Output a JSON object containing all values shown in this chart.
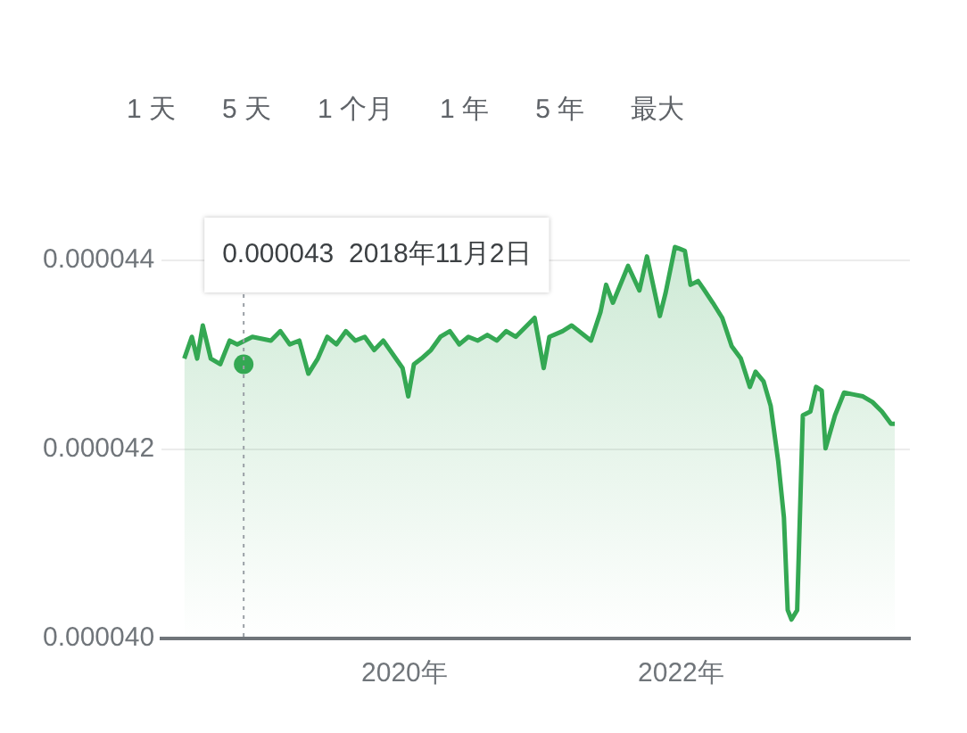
{
  "chart_data": {
    "type": "area",
    "x": [
      "2018-05-29",
      "2018-06-18",
      "2018-07-02",
      "2018-07-17",
      "2018-08-07",
      "2018-09-01",
      "2018-09-26",
      "2018-10-16",
      "2018-11-25",
      "2019-01-13",
      "2019-02-07",
      "2019-03-04",
      "2019-03-29",
      "2019-04-22",
      "2019-05-17",
      "2019-06-11",
      "2019-07-05",
      "2019-07-30",
      "2019-08-24",
      "2019-09-18",
      "2019-10-13",
      "2019-11-06",
      "2019-12-27",
      "2020-01-11",
      "2020-01-26",
      "2020-02-15",
      "2020-03-11",
      "2020-04-05",
      "2020-04-30",
      "2020-05-25",
      "2020-06-18",
      "2020-07-13",
      "2020-08-07",
      "2020-09-01",
      "2020-09-26",
      "2020-10-21",
      "2020-12-10",
      "2021-01-03",
      "2021-01-18",
      "2021-02-22",
      "2021-03-18",
      "2021-05-08",
      "2021-06-02",
      "2021-06-17",
      "2021-07-05",
      "2021-08-14",
      "2021-09-13",
      "2021-10-03",
      "2021-11-06",
      "2021-11-21",
      "2021-12-16",
      "2022-01-11",
      "2022-01-26",
      "2022-02-15",
      "2022-03-01",
      "2022-03-26",
      "2022-04-20",
      "2022-05-15",
      "2022-06-08",
      "2022-07-02",
      "2022-07-17",
      "2022-08-07",
      "2022-08-26",
      "2022-09-15",
      "2022-09-30",
      "2022-10-10",
      "2022-10-20",
      "2022-11-04",
      "2022-11-19",
      "2022-12-09",
      "2022-12-24",
      "2023-01-08",
      "2023-01-18",
      "2023-02-12",
      "2023-03-08",
      "2023-04-02",
      "2023-04-27",
      "2023-05-22",
      "2023-06-16",
      "2023-07-10",
      "2023-07-20"
    ],
    "series": [
      {
        "color": "#34a853",
        "values": [
          4.296e-05,
          4.319e-05,
          4.296e-05,
          4.331e-05,
          4.296e-05,
          4.29e-05,
          4.315e-05,
          4.311e-05,
          4.319e-05,
          4.315e-05,
          4.325e-05,
          4.311e-05,
          4.315e-05,
          4.28e-05,
          4.296e-05,
          4.319e-05,
          4.311e-05,
          4.325e-05,
          4.315e-05,
          4.319e-05,
          4.305e-05,
          4.315e-05,
          4.286e-05,
          4.256e-05,
          4.29e-05,
          4.296e-05,
          4.305e-05,
          4.319e-05,
          4.325e-05,
          4.311e-05,
          4.319e-05,
          4.315e-05,
          4.321e-05,
          4.315e-05,
          4.325e-05,
          4.319e-05,
          4.339e-05,
          4.286e-05,
          4.319e-05,
          4.325e-05,
          4.331e-05,
          4.315e-05,
          4.345e-05,
          4.374e-05,
          4.355e-05,
          4.394e-05,
          4.368e-05,
          4.404e-05,
          4.341e-05,
          4.365e-05,
          4.414e-05,
          4.41e-05,
          4.374e-05,
          4.378e-05,
          4.37e-05,
          4.355e-05,
          4.339e-05,
          4.309e-05,
          4.296e-05,
          4.266e-05,
          4.282e-05,
          4.272e-05,
          4.246e-05,
          4.187e-05,
          4.128e-05,
          4.03e-05,
          4.02e-05,
          4.03e-05,
          4.236e-05,
          4.24e-05,
          4.266e-05,
          4.262e-05,
          4.201e-05,
          4.236e-05,
          4.26e-05,
          4.258e-05,
          4.256e-05,
          4.25e-05,
          4.24e-05,
          4.227e-05,
          4.227e-05
        ]
      },
      {
        "type": "scatter",
        "color": "#34a853",
        "marker": "circle",
        "x": [
          "2018-11-02"
        ],
        "values": [
          4.29e-05
        ]
      }
    ],
    "xlim": [
      "2018-03-30",
      "2023-08-29"
    ],
    "xticks": [
      {
        "value": "2020-01-01",
        "label": "2020年"
      },
      {
        "value": "2022-01-01",
        "label": "2022年"
      }
    ],
    "ylim": [
      4e-05,
      4.43e-05
    ],
    "yticks": [
      {
        "value": 4e-05,
        "label": "0.000040"
      },
      {
        "value": 4.2e-05,
        "label": "0.000042"
      },
      {
        "value": 4.4e-05,
        "label": "0.000044"
      }
    ],
    "ref_lines": [
      {
        "axis": "x",
        "value": "2018-11-02",
        "label": "0.000043  2018年11月2日",
        "color": "#9aa0a6",
        "line_style": "dotted"
      }
    ],
    "grid": "y",
    "annotations": [
      "1 天",
      "5 天",
      "1 个月",
      "1 年",
      "5 年",
      "最大"
    ]
  }
}
